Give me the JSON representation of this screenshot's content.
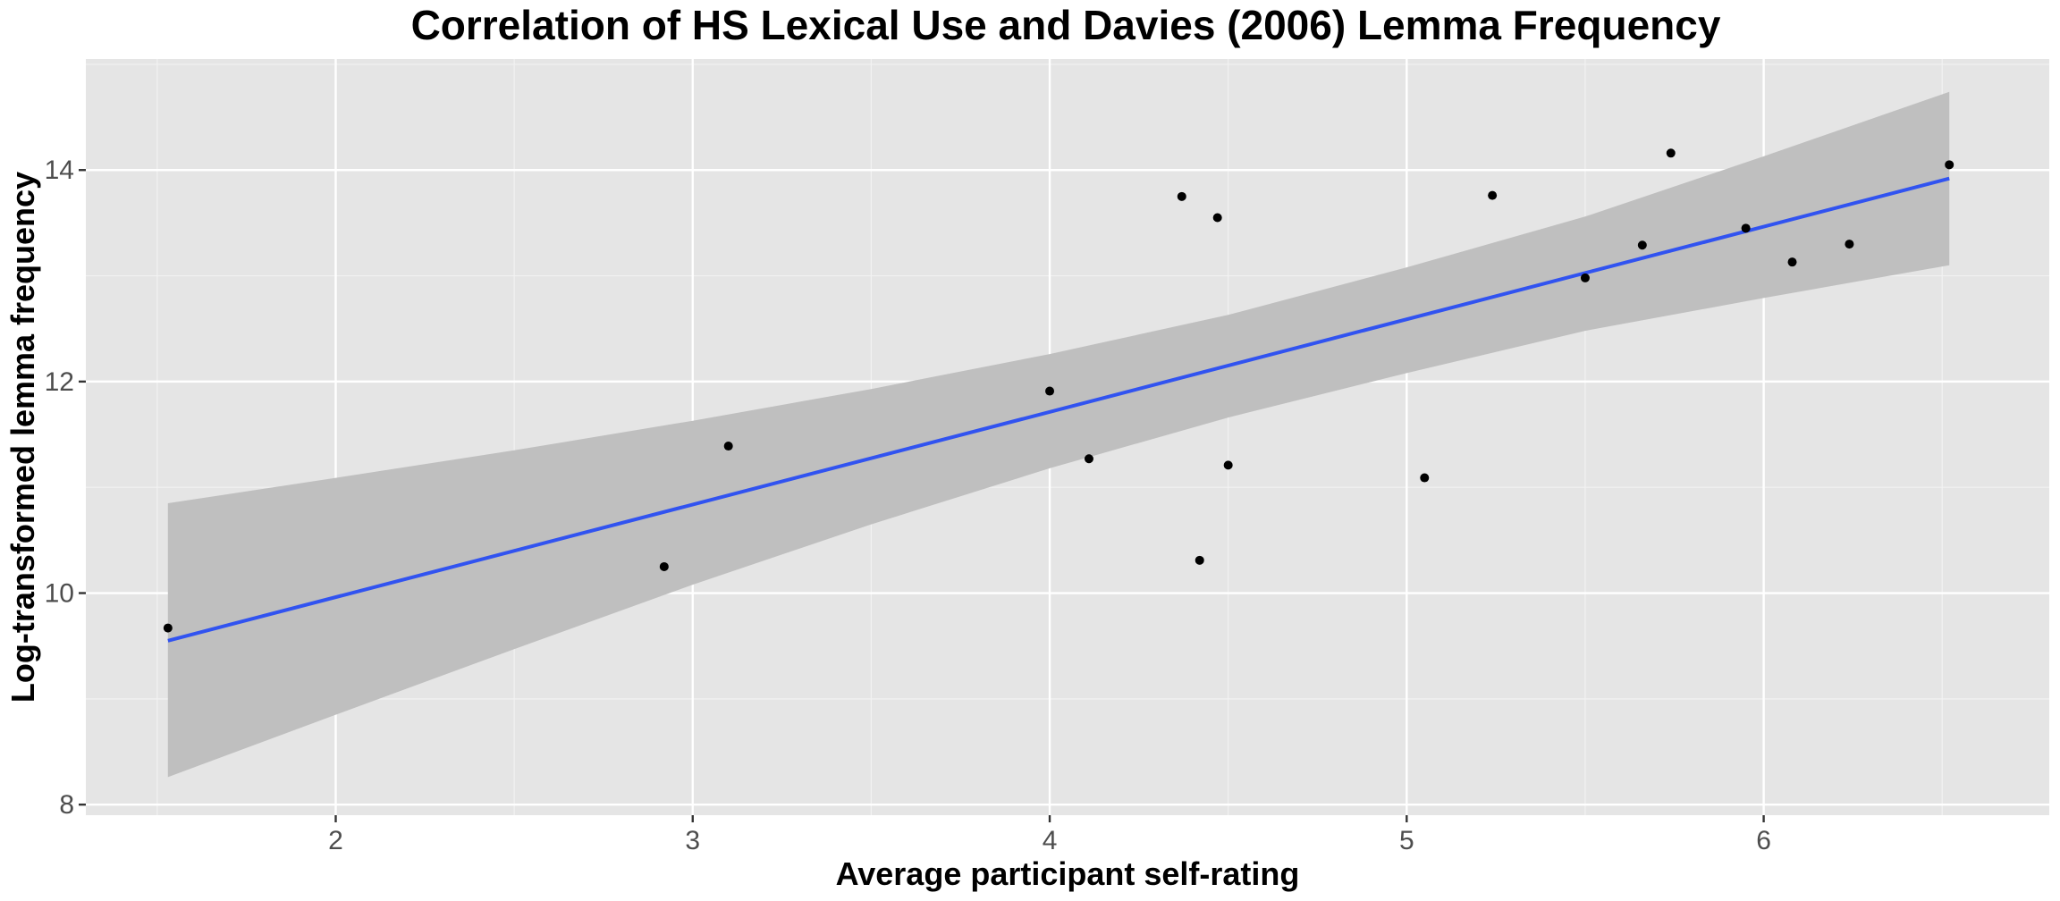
{
  "chart_data": {
    "type": "scatter",
    "title": "Correlation of HS Lexical Use and Davies (2006) Lemma Frequency",
    "xlabel": "Average participant self-rating",
    "ylabel": "Log-transformed lemma frequency",
    "xlim": [
      1.3,
      6.8
    ],
    "ylim": [
      7.9,
      15.05
    ],
    "x_ticks": [
      {
        "value": 2,
        "label": "2"
      },
      {
        "value": 3,
        "label": "3"
      },
      {
        "value": 4,
        "label": "4"
      },
      {
        "value": 5,
        "label": "5"
      },
      {
        "value": 6,
        "label": "6"
      }
    ],
    "y_ticks": [
      {
        "value": 8,
        "label": "8"
      },
      {
        "value": 10,
        "label": "10"
      },
      {
        "value": 12,
        "label": "12"
      },
      {
        "value": 14,
        "label": "14"
      }
    ],
    "grid": true,
    "points": [
      {
        "x": 1.53,
        "y": 9.67
      },
      {
        "x": 2.92,
        "y": 10.25
      },
      {
        "x": 3.1,
        "y": 11.39
      },
      {
        "x": 4.0,
        "y": 11.91
      },
      {
        "x": 4.11,
        "y": 11.27
      },
      {
        "x": 4.37,
        "y": 13.75
      },
      {
        "x": 4.42,
        "y": 10.31
      },
      {
        "x": 4.47,
        "y": 13.55
      },
      {
        "x": 4.5,
        "y": 11.21
      },
      {
        "x": 5.05,
        "y": 11.09
      },
      {
        "x": 5.24,
        "y": 13.76
      },
      {
        "x": 5.5,
        "y": 12.98
      },
      {
        "x": 5.66,
        "y": 13.29
      },
      {
        "x": 5.74,
        "y": 14.16
      },
      {
        "x": 5.95,
        "y": 13.45
      },
      {
        "x": 6.08,
        "y": 13.13
      },
      {
        "x": 6.24,
        "y": 13.3
      },
      {
        "x": 6.52,
        "y": 14.05
      }
    ],
    "fit_line": {
      "x": [
        1.53,
        6.52
      ],
      "y": [
        9.55,
        13.92
      ]
    },
    "confidence_band": {
      "x": [
        1.53,
        2.0,
        2.5,
        3.0,
        3.5,
        4.0,
        4.5,
        5.0,
        5.5,
        6.0,
        6.52
      ],
      "lower": [
        8.26,
        8.85,
        9.47,
        10.08,
        10.65,
        11.18,
        11.66,
        12.08,
        12.48,
        12.79,
        13.1
      ],
      "upper": [
        10.85,
        11.09,
        11.35,
        11.63,
        11.93,
        12.26,
        12.63,
        13.08,
        13.56,
        14.13,
        14.74
      ]
    },
    "colors": {
      "panel": "#e5e5e5",
      "grid_major": "#ffffff",
      "grid_minor": "#f2f2f2",
      "band": "#bfbfbf",
      "line": "#3153f0",
      "point": "#000000"
    }
  }
}
